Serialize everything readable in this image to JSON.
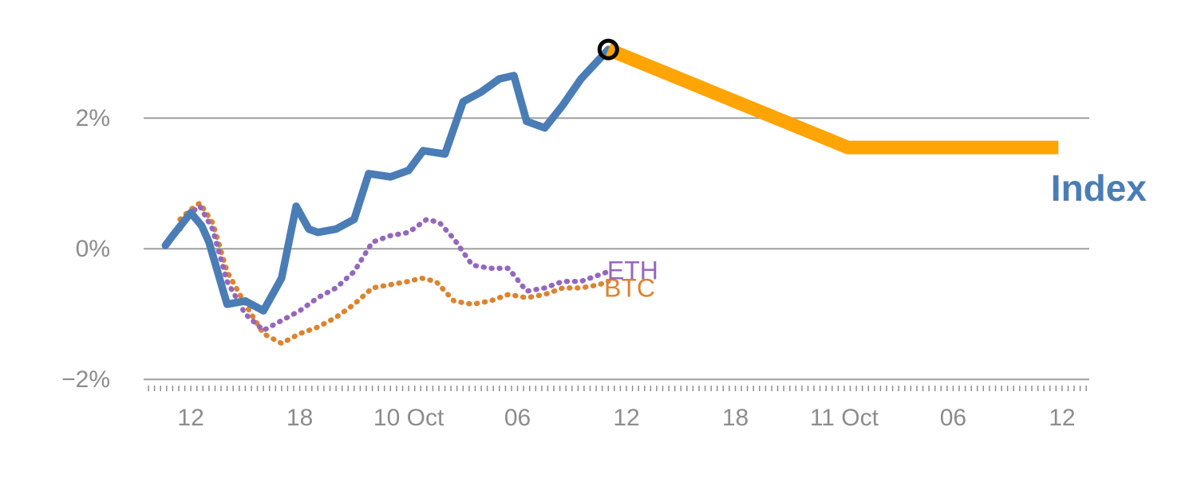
{
  "page": {
    "background": "#ffffff",
    "description": "Percent-change line chart comparing BTC, ETH and a blue Index line, with a thick orange projected/continuation segment starting at a circled peak marker"
  },
  "chart_data": {
    "type": "line",
    "title": "",
    "xlabel": "",
    "ylabel": "",
    "x_unit": "hours since 00:00 on 9 Oct",
    "xlim": [
      9.4,
      61.5
    ],
    "ylim": [
      -2.4,
      3.6
    ],
    "grid": true,
    "legend_position": "inline-labels",
    "colors": {
      "grid": "#9f9f9f",
      "axis_text": "#8c8c8c",
      "minor_tick": "#8f8f8f"
    },
    "yticks": [
      {
        "value": 2,
        "label": "2%"
      },
      {
        "value": 0,
        "label": "0%"
      },
      {
        "value": -2,
        "label": "−2%"
      }
    ],
    "xticks": [
      {
        "value": 12,
        "label": "12"
      },
      {
        "value": 18,
        "label": "18"
      },
      {
        "value": 24,
        "label": "10 Oct"
      },
      {
        "value": 30,
        "label": "06"
      },
      {
        "value": 36,
        "label": "12"
      },
      {
        "value": 42,
        "label": "18"
      },
      {
        "value": 48,
        "label": "11 Oct"
      },
      {
        "value": 54,
        "label": "06"
      },
      {
        "value": 60,
        "label": "12"
      }
    ],
    "series": [
      {
        "name": "BTC",
        "color": "#dd832e",
        "style": "dotted",
        "label": "BTC",
        "label_pos": {
          "x": 34.77,
          "y": -0.6
        },
        "label_size": 32,
        "label_bold": false,
        "points": [
          [
            11.4,
            0.45
          ],
          [
            12,
            0.6
          ],
          [
            12.5,
            0.7
          ],
          [
            13.2,
            0.4
          ],
          [
            14,
            -0.35
          ],
          [
            15,
            -0.85
          ],
          [
            16,
            -1.3
          ],
          [
            17,
            -1.45
          ],
          [
            18,
            -1.3
          ],
          [
            19,
            -1.2
          ],
          [
            20,
            -1.05
          ],
          [
            21,
            -0.85
          ],
          [
            22,
            -0.6
          ],
          [
            23,
            -0.55
          ],
          [
            24,
            -0.5
          ],
          [
            24.7,
            -0.45
          ],
          [
            25.5,
            -0.5
          ],
          [
            26.5,
            -0.8
          ],
          [
            27.5,
            -0.85
          ],
          [
            28.5,
            -0.8
          ],
          [
            29.5,
            -0.7
          ],
          [
            30.5,
            -0.75
          ],
          [
            31.5,
            -0.7
          ],
          [
            32.5,
            -0.6
          ],
          [
            33.5,
            -0.6
          ],
          [
            34.5,
            -0.55
          ],
          [
            35,
            -0.5
          ]
        ]
      },
      {
        "name": "ETH",
        "color": "#9467bd",
        "style": "dotted",
        "label": "ETH",
        "label_pos": {
          "x": 34.94,
          "y": -0.33
        },
        "label_size": 32,
        "label_bold": false,
        "points": [
          [
            11.4,
            0.3
          ],
          [
            12,
            0.55
          ],
          [
            12.5,
            0.65
          ],
          [
            13.2,
            0.3
          ],
          [
            14,
            -0.5
          ],
          [
            15,
            -1.0
          ],
          [
            16,
            -1.25
          ],
          [
            17,
            -1.1
          ],
          [
            18,
            -0.95
          ],
          [
            19,
            -0.75
          ],
          [
            20,
            -0.6
          ],
          [
            21,
            -0.35
          ],
          [
            22,
            0.1
          ],
          [
            23,
            0.2
          ],
          [
            24,
            0.25
          ],
          [
            25,
            0.45
          ],
          [
            25.7,
            0.4
          ],
          [
            26.5,
            0.15
          ],
          [
            27.5,
            -0.25
          ],
          [
            28.5,
            -0.3
          ],
          [
            29.5,
            -0.3
          ],
          [
            30.5,
            -0.65
          ],
          [
            31.5,
            -0.6
          ],
          [
            32.5,
            -0.5
          ],
          [
            33.5,
            -0.5
          ],
          [
            34.5,
            -0.4
          ],
          [
            35,
            -0.35
          ]
        ]
      },
      {
        "name": "Index",
        "color": "#4a7db6",
        "style": "solid",
        "label": "Index",
        "label_pos": {
          "x": 59.38,
          "y": 0.93
        },
        "label_size": 46,
        "label_bold": true,
        "points": [
          [
            10.6,
            0.05
          ],
          [
            11,
            0.2
          ],
          [
            12,
            0.55
          ],
          [
            12.6,
            0.35
          ],
          [
            13,
            0.1
          ],
          [
            14,
            -0.85
          ],
          [
            15,
            -0.8
          ],
          [
            16,
            -0.95
          ],
          [
            17,
            -0.45
          ],
          [
            17.8,
            0.65
          ],
          [
            18.5,
            0.3
          ],
          [
            19,
            0.25
          ],
          [
            20,
            0.3
          ],
          [
            21,
            0.45
          ],
          [
            21.8,
            1.15
          ],
          [
            23,
            1.1
          ],
          [
            24,
            1.2
          ],
          [
            24.8,
            1.5
          ],
          [
            26,
            1.45
          ],
          [
            27,
            2.25
          ],
          [
            28,
            2.4
          ],
          [
            29,
            2.6
          ],
          [
            29.8,
            2.65
          ],
          [
            30.5,
            1.95
          ],
          [
            31.5,
            1.85
          ],
          [
            32.5,
            2.2
          ],
          [
            33.5,
            2.6
          ],
          [
            35,
            3.05
          ]
        ]
      },
      {
        "name": "Index forecast",
        "color": "#ffa405",
        "style": "heavy",
        "label": "",
        "label_pos": null,
        "points": [
          [
            35,
            3.05
          ],
          [
            48.2,
            1.55
          ],
          [
            59.8,
            1.55
          ]
        ]
      }
    ],
    "marker": {
      "x": 35,
      "y": 3.05,
      "shape": "open-circle",
      "radius": 11,
      "stroke_width": 5,
      "color": "#000000"
    }
  }
}
